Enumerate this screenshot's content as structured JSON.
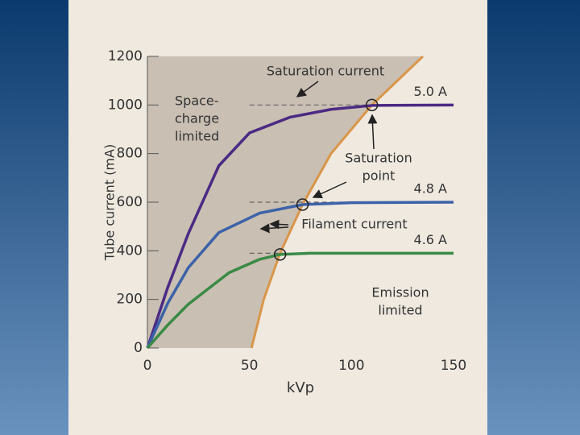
{
  "chart_data": {
    "type": "line",
    "x_label": "kVp",
    "y_label": "Tube current (mA)",
    "xlim": [
      0,
      150
    ],
    "xticks": [
      0,
      50,
      100,
      150
    ],
    "ylim": [
      0,
      1200
    ],
    "yticks": [
      0,
      200,
      400,
      600,
      800,
      1000,
      1200
    ],
    "series": [
      {
        "name": "5.0 A",
        "color": "#4b2a84",
        "x": [
          0,
          10,
          20,
          35,
          50,
          70,
          90,
          110,
          150
        ],
        "values": [
          0,
          250,
          470,
          750,
          885,
          950,
          982,
          998,
          1000
        ]
      },
      {
        "name": "4.8 A",
        "color": "#3c62a8",
        "x": [
          0,
          10,
          20,
          35,
          55,
          76,
          100,
          150
        ],
        "values": [
          0,
          185,
          330,
          475,
          555,
          590,
          598,
          600
        ]
      },
      {
        "name": "4.6 A",
        "color": "#3a8a45",
        "x": [
          0,
          10,
          20,
          40,
          55,
          65,
          80,
          150
        ],
        "values": [
          0,
          95,
          180,
          310,
          365,
          385,
          390,
          390
        ]
      }
    ],
    "emission_curve": {
      "color": "#d9964a",
      "x": [
        51,
        57,
        65,
        76,
        90,
        110,
        135
      ],
      "values": [
        0,
        200,
        390,
        590,
        800,
        1000,
        1200
      ]
    },
    "circled_points": {
      "x": [
        65,
        76,
        110
      ],
      "values": [
        385,
        590,
        1000
      ]
    },
    "annotations": {
      "saturation_current": "Saturation current",
      "space_charge": [
        "Space-",
        "charge",
        "limited"
      ],
      "saturation_point": [
        "Saturation",
        "point"
      ],
      "filament_current": "Filament current",
      "emission_limited": [
        "Emission",
        "limited"
      ]
    }
  }
}
